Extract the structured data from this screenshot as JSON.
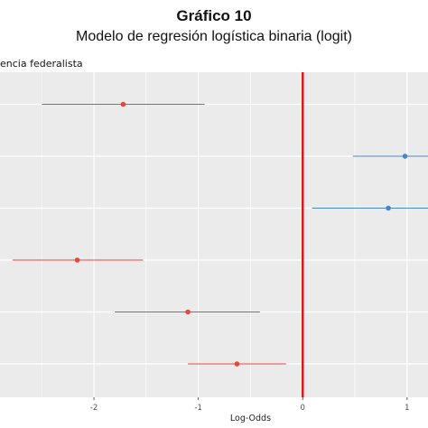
{
  "chart_data": {
    "type": "scatter",
    "subtype": "coefficient-plot",
    "title": "Gráfico 10",
    "subtitle": "Modelo de regresión logística binaria (logit)",
    "ylabel": "encia federalista",
    "xlabel": "Log-Odds",
    "xlim": [
      -2.9,
      1.2
    ],
    "x_ticks": [
      -2,
      -1,
      0,
      1
    ],
    "x_tick_labels": [
      "-2",
      "-1",
      "0",
      "1"
    ],
    "reference_line": 0,
    "grid": true,
    "points": [
      {
        "estimate": -1.72,
        "low": -2.5,
        "high": -0.94,
        "color": "#e8473b"
      },
      {
        "estimate": 0.98,
        "low": 0.48,
        "high": 1.2,
        "color": "#4a86c5"
      },
      {
        "estimate": 0.82,
        "low": 0.09,
        "high": 1.2,
        "color": "#4a86c5"
      },
      {
        "estimate": -2.16,
        "low": -2.78,
        "high": -1.53,
        "color": "#e8473b"
      },
      {
        "estimate": -1.1,
        "low": -1.8,
        "high": -0.41,
        "color": "#e8473b"
      },
      {
        "estimate": -0.63,
        "low": -1.1,
        "high": -0.16,
        "color": "#e8473b"
      }
    ],
    "colors": {
      "negative": "#e8473b",
      "positive": "#4a86c5",
      "reference": "#dd1111",
      "panel": "#ebebeb",
      "grid": "#ffffff"
    }
  }
}
